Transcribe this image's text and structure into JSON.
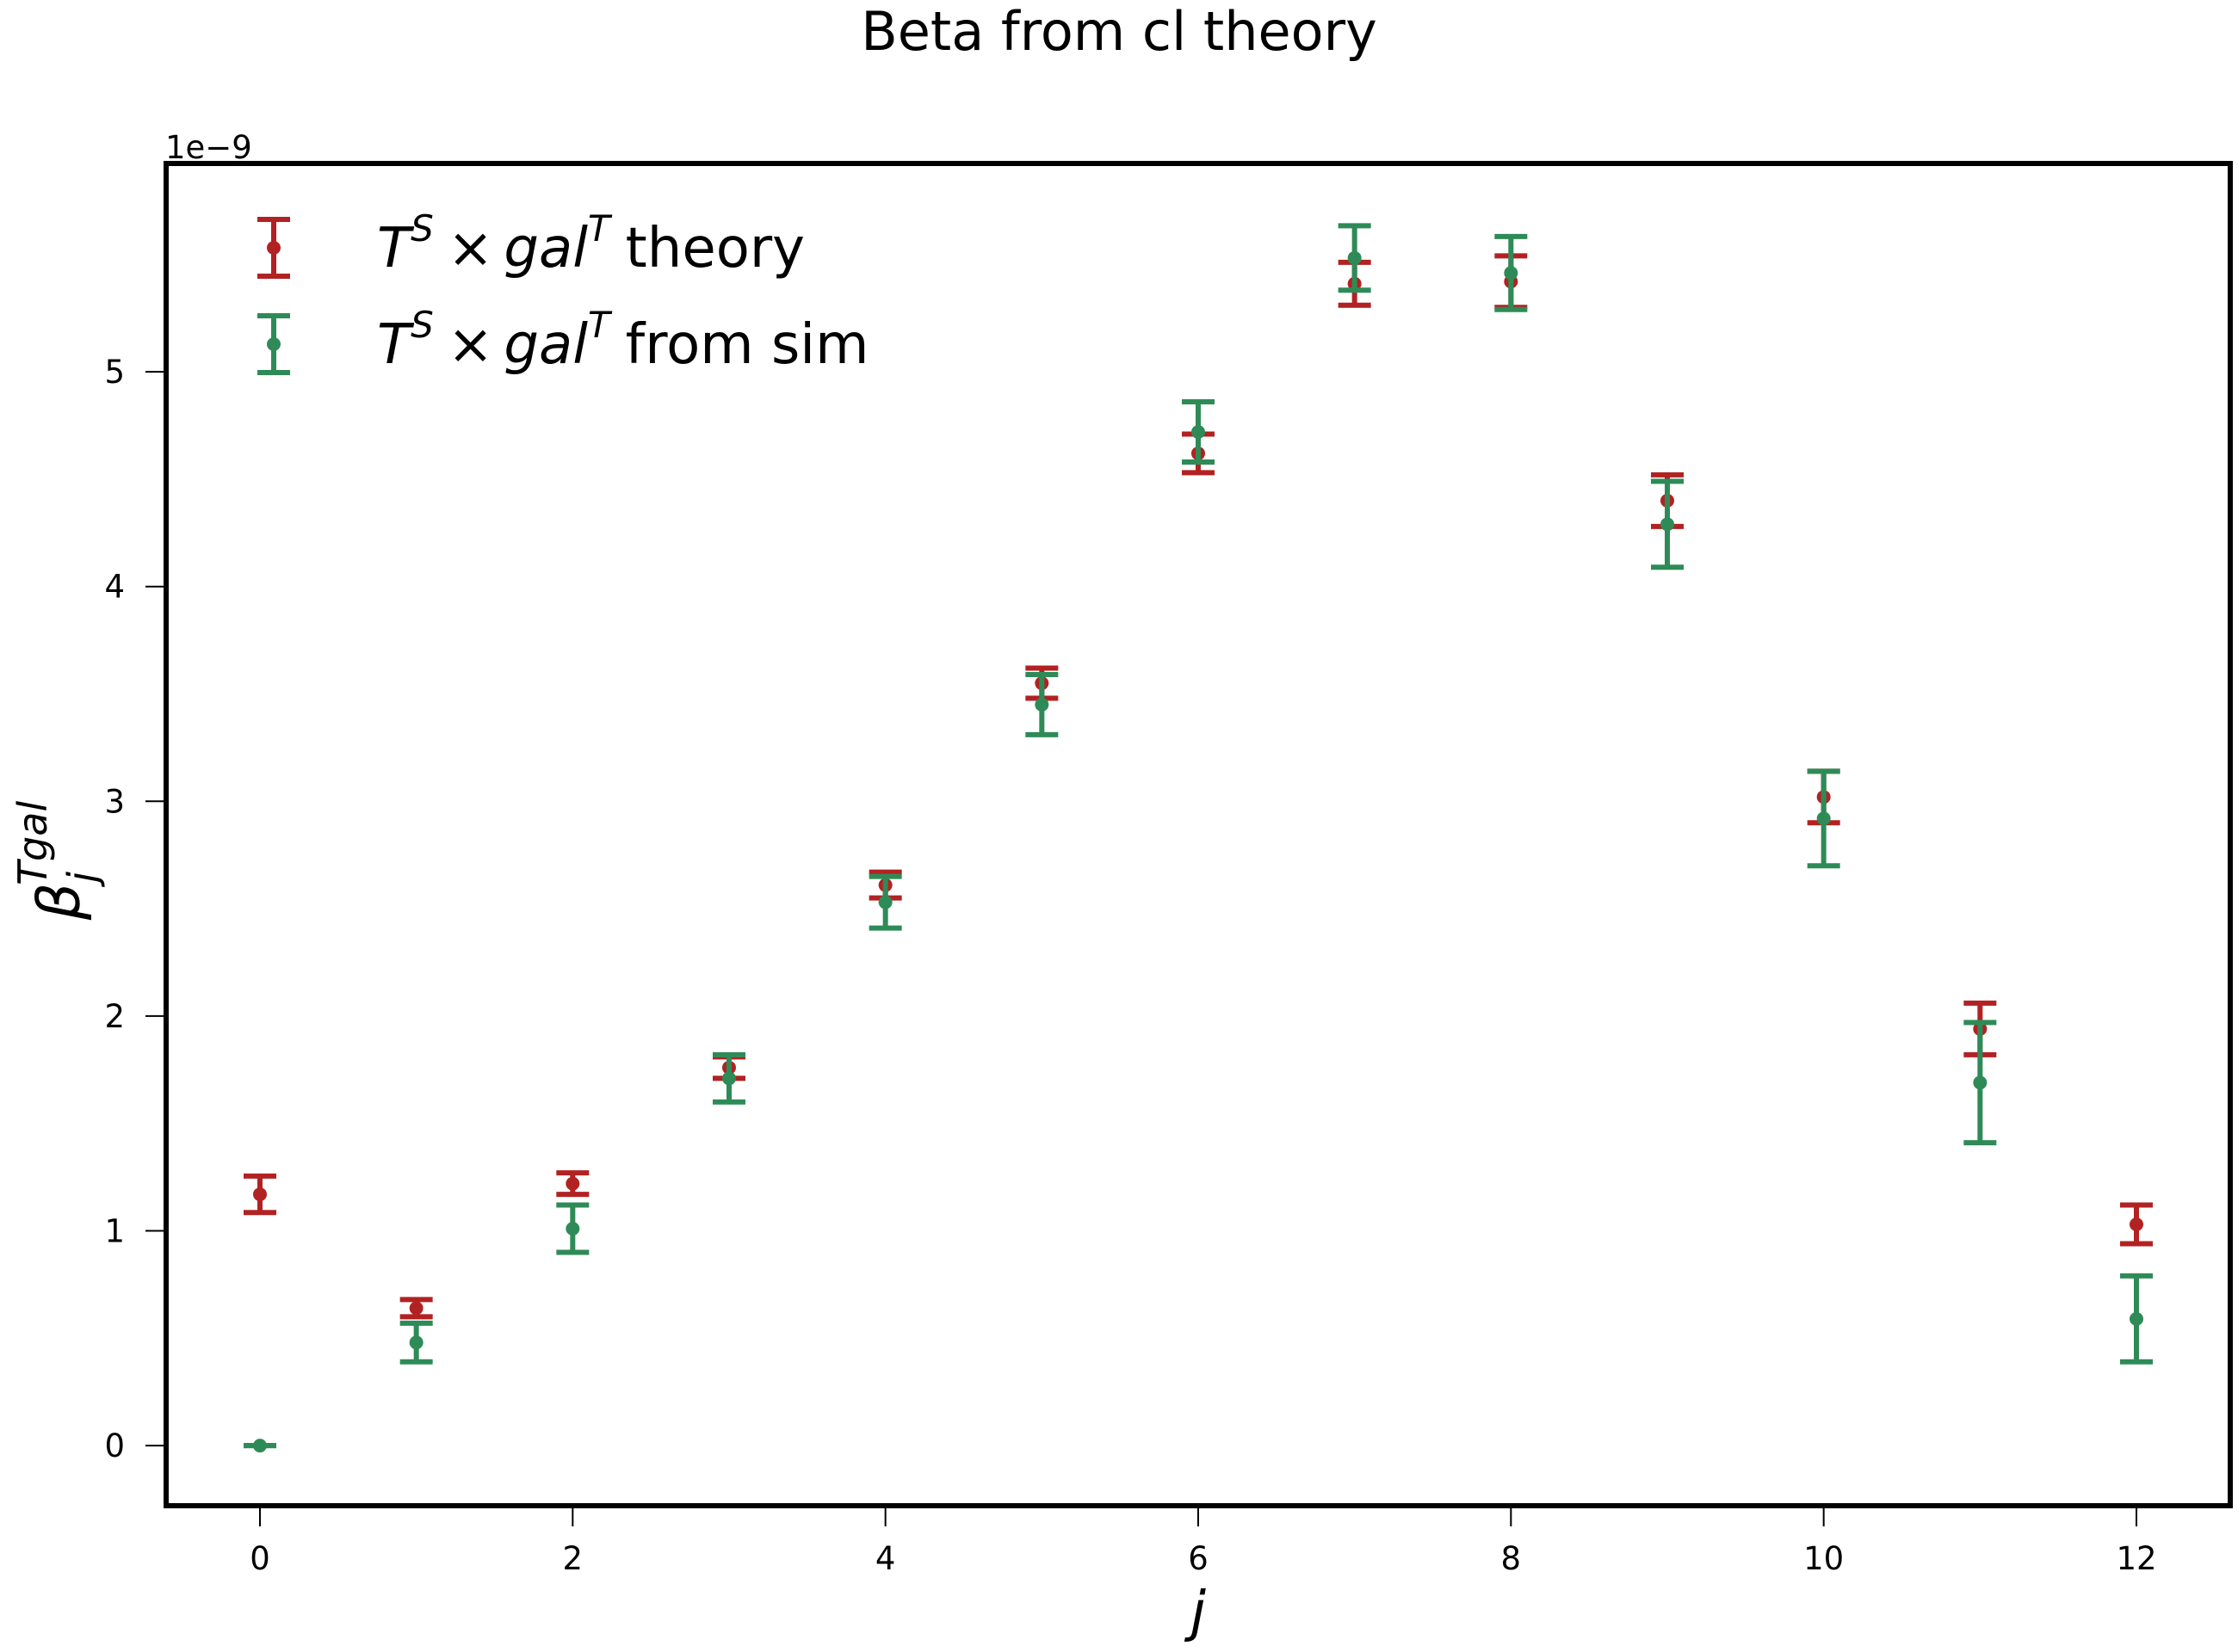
{
  "chart_data": {
    "type": "scatter",
    "title": "Beta from cl theory",
    "xlabel": "j",
    "ylabel": {
      "base": "β",
      "sub": "j",
      "sup": "Tgal"
    },
    "y_multiplier_label": "1e−9",
    "xlim": [
      -0.6,
      12.6
    ],
    "ylim": [
      -0.28,
      5.97
    ],
    "xticks": [
      0,
      2,
      4,
      6,
      8,
      10,
      12
    ],
    "yticks": [
      0,
      1,
      2,
      3,
      4,
      5
    ],
    "grid": false,
    "legend_position": "top-left",
    "series": [
      {
        "name_parts": [
          "T",
          "S",
          "×",
          "gal",
          "T",
          "theory"
        ],
        "color": "#b22222",
        "offset": 0.0,
        "points": [
          {
            "x": 0,
            "y": 1.17,
            "err": 0.085
          },
          {
            "x": 1,
            "y": 0.64,
            "err": 0.04
          },
          {
            "x": 2,
            "y": 1.22,
            "err": 0.05
          },
          {
            "x": 3,
            "y": 1.76,
            "err": 0.05
          },
          {
            "x": 4,
            "y": 2.61,
            "err": 0.06
          },
          {
            "x": 5,
            "y": 3.55,
            "err": 0.07
          },
          {
            "x": 6,
            "y": 4.62,
            "err": 0.09
          },
          {
            "x": 7,
            "y": 5.41,
            "err": 0.1
          },
          {
            "x": 8,
            "y": 5.42,
            "err": 0.12
          },
          {
            "x": 9,
            "y": 4.4,
            "err": 0.12
          },
          {
            "x": 10,
            "y": 3.02,
            "err": 0.12
          },
          {
            "x": 11,
            "y": 1.94,
            "err": 0.12
          },
          {
            "x": 12,
            "y": 1.03,
            "err": 0.09
          }
        ]
      },
      {
        "name_parts": [
          "T",
          "S",
          "×",
          "gal",
          "T",
          "from sim"
        ],
        "color": "#2e8b57",
        "offset": 0.0,
        "points": [
          {
            "x": 0,
            "y": 0.0,
            "err": 0.0
          },
          {
            "x": 1,
            "y": 0.48,
            "err": 0.09
          },
          {
            "x": 2,
            "y": 1.01,
            "err": 0.11
          },
          {
            "x": 3,
            "y": 1.71,
            "err": 0.11
          },
          {
            "x": 4,
            "y": 2.53,
            "err": 0.12
          },
          {
            "x": 5,
            "y": 3.45,
            "err": 0.14
          },
          {
            "x": 6,
            "y": 4.72,
            "err": 0.14
          },
          {
            "x": 7,
            "y": 5.53,
            "err": 0.15
          },
          {
            "x": 8,
            "y": 5.46,
            "err": 0.17
          },
          {
            "x": 9,
            "y": 4.29,
            "err": 0.2
          },
          {
            "x": 10,
            "y": 2.92,
            "err": 0.22
          },
          {
            "x": 11,
            "y": 1.69,
            "err": 0.28
          },
          {
            "x": 12,
            "y": 0.59,
            "err": 0.2
          }
        ]
      }
    ]
  }
}
